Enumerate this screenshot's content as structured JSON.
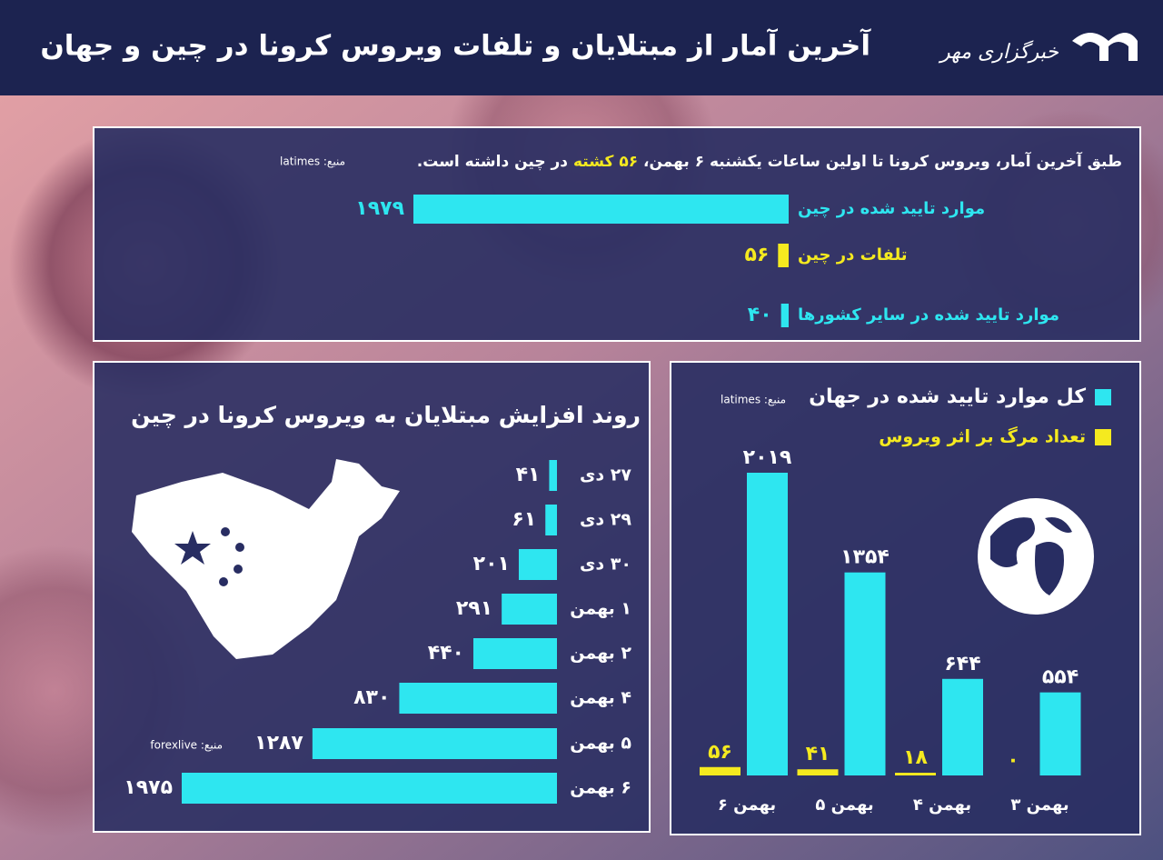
{
  "header": {
    "title": "آخرین آمار از مبتلایان و تلفات ویروس کرونا در چین و جهان",
    "logo": "خبرگزاری مهر"
  },
  "chart_data": [
    {
      "type": "hbar",
      "intro": [
        "طبق آخرین آمار، ویروس کرونا تا اولین ساعات یکشنبه ۶ بهمن،",
        "۵۶ کشته",
        "در چین داشته است."
      ],
      "source": "منبع: latimes",
      "categories": [
        "موارد تایید شده در چین",
        "تلفات در چین",
        "موارد تایید شده در سایر کشورها"
      ],
      "values": [
        1979,
        56,
        40
      ],
      "value_labels": [
        "۱۹۷۹",
        "۵۶",
        "۴۰"
      ],
      "colors": [
        "#2ee6f0",
        "#f5ea1f",
        "#2ee6f0"
      ]
    },
    {
      "type": "hbar",
      "title": "روند افزایش مبتلایان به ویروس کرونا در چین",
      "source": "منبع: forexlive",
      "categories": [
        "۲۷ دی",
        "۲۹ دی",
        "۳۰ دی",
        "۱ بهمن",
        "۲ بهمن",
        "۴ بهمن",
        "۵ بهمن",
        "۶ بهمن"
      ],
      "values": [
        41,
        61,
        201,
        291,
        440,
        830,
        1287,
        1975
      ],
      "value_labels": [
        "۴۱",
        "۶۱",
        "۲۰۱",
        "۲۹۱",
        "۴۴۰",
        "۸۳۰",
        "۱۲۸۷",
        "۱۹۷۵"
      ],
      "color": "#2ee6f0"
    },
    {
      "type": "grouped_bar",
      "source": "منبع: latimes",
      "categories": [
        "۶ بهمن",
        "۵ بهمن",
        "۴ بهمن",
        "۳ بهمن"
      ],
      "series": [
        {
          "name": "کل موارد تایید شده در جهان",
          "color": "#2ee6f0",
          "values": [
            2019,
            1354,
            644,
            554
          ],
          "value_labels": [
            "۲۰۱۹",
            "۱۳۵۴",
            "۶۴۴",
            "۵۵۴"
          ]
        },
        {
          "name": "تعداد مرگ بر اثر ویروس",
          "color": "#f5ea1f",
          "values": [
            56,
            41,
            18,
            0
          ],
          "value_labels": [
            "۵۶",
            "۴۱",
            "۱۸",
            "۰"
          ]
        }
      ]
    }
  ]
}
